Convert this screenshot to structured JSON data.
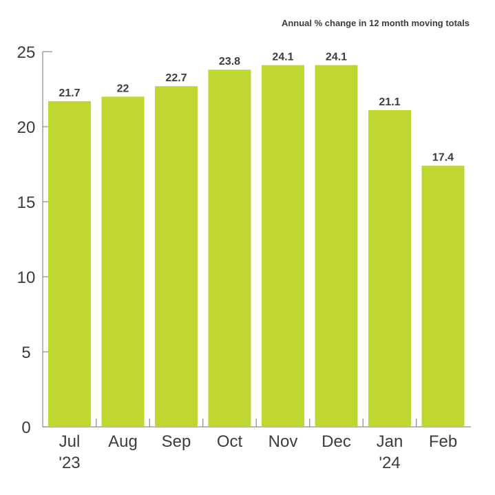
{
  "chart_data": {
    "type": "bar",
    "subtitle": "Annual % change in 12 month moving totals",
    "categories": [
      "Jul '23",
      "Aug",
      "Sep",
      "Oct",
      "Nov",
      "Dec",
      "Jan '24",
      "Feb"
    ],
    "category_lines": [
      [
        "Jul",
        "'23"
      ],
      [
        "Aug"
      ],
      [
        "Sep"
      ],
      [
        "Oct"
      ],
      [
        "Nov"
      ],
      [
        "Dec"
      ],
      [
        "Jan",
        "'24"
      ],
      [
        "Feb"
      ]
    ],
    "values": [
      21.7,
      22,
      22.7,
      23.8,
      24.1,
      24.1,
      21.1,
      17.4
    ],
    "value_labels": [
      "21.7",
      "22",
      "22.7",
      "23.8",
      "24.1",
      "24.1",
      "21.1",
      "17.4"
    ],
    "ylim": [
      0,
      25
    ],
    "yticks": [
      0,
      5,
      10,
      15,
      20,
      25
    ],
    "grid": false,
    "legend": "none",
    "colors": {
      "bar": "#bfd730",
      "axis": "#8a8a8a",
      "text": "#3c3c3c"
    }
  }
}
